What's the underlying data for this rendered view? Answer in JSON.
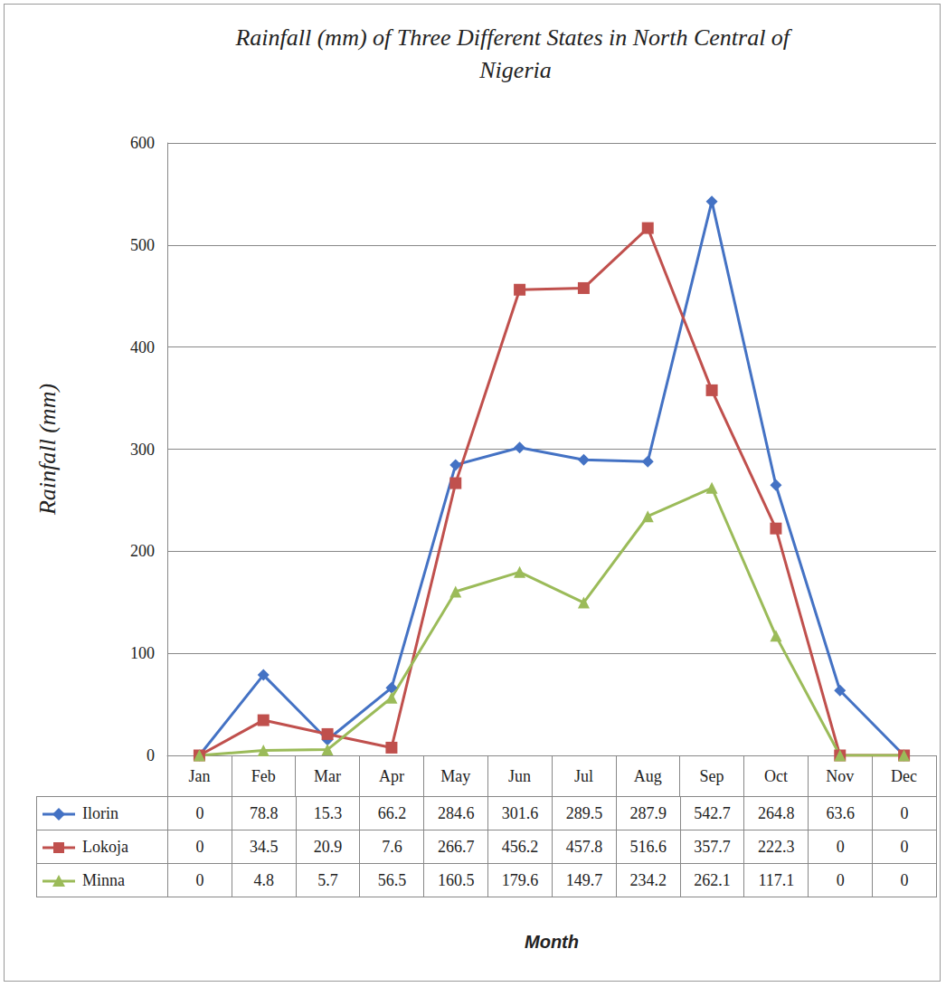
{
  "chart_data": {
    "type": "line",
    "title": "Rainfall (mm) of Three Different States in North Central of Nigeria",
    "x_label": "Month",
    "y_label": "Rainfall (mm)",
    "categories": [
      "Jan",
      "Feb",
      "Mar",
      "Apr",
      "May",
      "Jun",
      "Jul",
      "Aug",
      "Sep",
      "Oct",
      "Nov",
      "Dec"
    ],
    "series": [
      {
        "name": "Ilorin",
        "color": "#4472c4",
        "marker": "diamond",
        "values": [
          0,
          78.8,
          15.3,
          66.2,
          284.6,
          301.6,
          289.5,
          287.9,
          542.7,
          264.8,
          63.6,
          0
        ]
      },
      {
        "name": "Lokoja",
        "color": "#c0504d",
        "marker": "square",
        "values": [
          0,
          34.5,
          20.9,
          7.6,
          266.7,
          456.2,
          457.8,
          516.6,
          357.7,
          222.3,
          0,
          0
        ]
      },
      {
        "name": "Minna",
        "color": "#9bbb59",
        "marker": "triangle",
        "values": [
          0,
          4.8,
          5.7,
          56.5,
          160.5,
          179.6,
          149.7,
          234.2,
          262.1,
          117.1,
          0,
          0
        ]
      }
    ],
    "ylim": [
      0,
      600
    ],
    "yticks": [
      0,
      100,
      200,
      300,
      400,
      500,
      600
    ],
    "grid": true
  }
}
